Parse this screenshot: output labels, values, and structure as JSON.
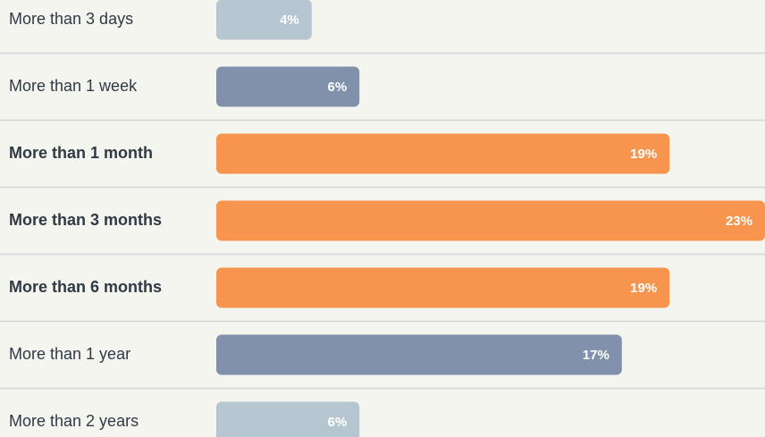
{
  "chart_data": {
    "type": "bar",
    "orientation": "horizontal",
    "categories": [
      "More than 3 days",
      "More than 1 week",
      "More than 1 month",
      "More than 3 months",
      "More than 6 months",
      "More than 1 year",
      "More than 2 years"
    ],
    "values": [
      4,
      6,
      19,
      23,
      19,
      17,
      6
    ],
    "value_labels": [
      "4%",
      "6%",
      "19%",
      "23%",
      "19%",
      "17%",
      "6%"
    ],
    "colors": [
      "#b6c6d1",
      "#8191ac",
      "#f7944d",
      "#f7944d",
      "#f7944d",
      "#8191ac",
      "#b6c6d1"
    ],
    "bold": [
      false,
      false,
      true,
      true,
      true,
      false,
      false
    ]
  }
}
